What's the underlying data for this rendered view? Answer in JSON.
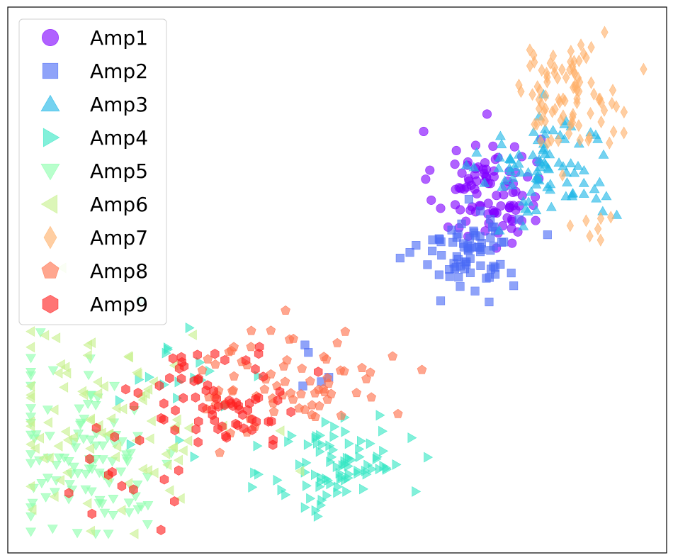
{
  "chart_data": {
    "type": "scatter",
    "title": "",
    "xlabel": "",
    "ylabel": "",
    "xlim": [
      0,
      100
    ],
    "ylim": [
      0,
      100
    ],
    "axis_ticks": "none",
    "grid": false,
    "legend_position": "upper-left",
    "series": [
      {
        "name": "Amp1",
        "marker": "circle",
        "color": "#8000ff",
        "clusters": [
          {
            "center": [
              72.8,
              66.5
            ],
            "spread": [
              4.0,
              5.5
            ],
            "count": 95
          }
        ]
      },
      {
        "name": "Amp2",
        "marker": "square",
        "color": "#4b6bf5",
        "clusters": [
          {
            "center": [
              70.0,
              55.5
            ],
            "spread": [
              3.7,
              3.6
            ],
            "count": 75
          },
          {
            "center": [
              46.5,
              34.5
            ],
            "spread": [
              2.0,
              3.0
            ],
            "count": 5
          }
        ]
      },
      {
        "name": "Amp3",
        "marker": "triangle-up",
        "color": "#1fb7e6",
        "clusters": [
          {
            "center": [
              82.0,
              70.5
            ],
            "spread": [
              5.0,
              5.0
            ],
            "count": 90
          }
        ]
      },
      {
        "name": "Amp4",
        "marker": "triangle-right",
        "color": "#35e6c4",
        "clusters": [
          {
            "center": [
              50.5,
              16.0
            ],
            "spread": [
              5.2,
              4.7
            ],
            "count": 85
          },
          {
            "center": [
              24.0,
              30.5
            ],
            "spread": [
              7.5,
              6.0
            ],
            "count": 20
          }
        ]
      },
      {
        "name": "Amp5",
        "marker": "triangle-down",
        "color": "#8cffad",
        "clusters": [
          {
            "center": [
              12.5,
              18.0
            ],
            "spread": [
              7.0,
              8.0
            ],
            "count": 105
          }
        ]
      },
      {
        "name": "Amp6",
        "marker": "triangle-left",
        "color": "#c7f08c",
        "clusters": [
          {
            "center": [
              15.0,
              23.5
            ],
            "spread": [
              10.0,
              9.5
            ],
            "count": 90
          }
        ]
      },
      {
        "name": "Amp7",
        "marker": "diamond",
        "color": "#ffb069",
        "clusters": [
          {
            "center": [
              85.0,
              84.0
            ],
            "spread": [
              4.0,
              4.5
            ],
            "count": 90
          },
          {
            "center": [
              88.5,
              59.0
            ],
            "spread": [
              2.0,
              2.0
            ],
            "count": 7
          }
        ]
      },
      {
        "name": "Amp8",
        "marker": "pentagon",
        "color": "#ff6f4a",
        "clusters": [
          {
            "center": [
              43.0,
              32.0
            ],
            "spread": [
              7.0,
              5.5
            ],
            "count": 75
          }
        ]
      },
      {
        "name": "Amp9",
        "marker": "hexagon",
        "color": "#ff1e1e",
        "clusters": [
          {
            "center": [
              32.5,
              28.5
            ],
            "spread": [
              6.5,
              4.5
            ],
            "count": 70
          },
          {
            "center": [
              18.5,
              14.5
            ],
            "spread": [
              4.0,
              6.0
            ],
            "count": 15
          }
        ]
      }
    ]
  }
}
